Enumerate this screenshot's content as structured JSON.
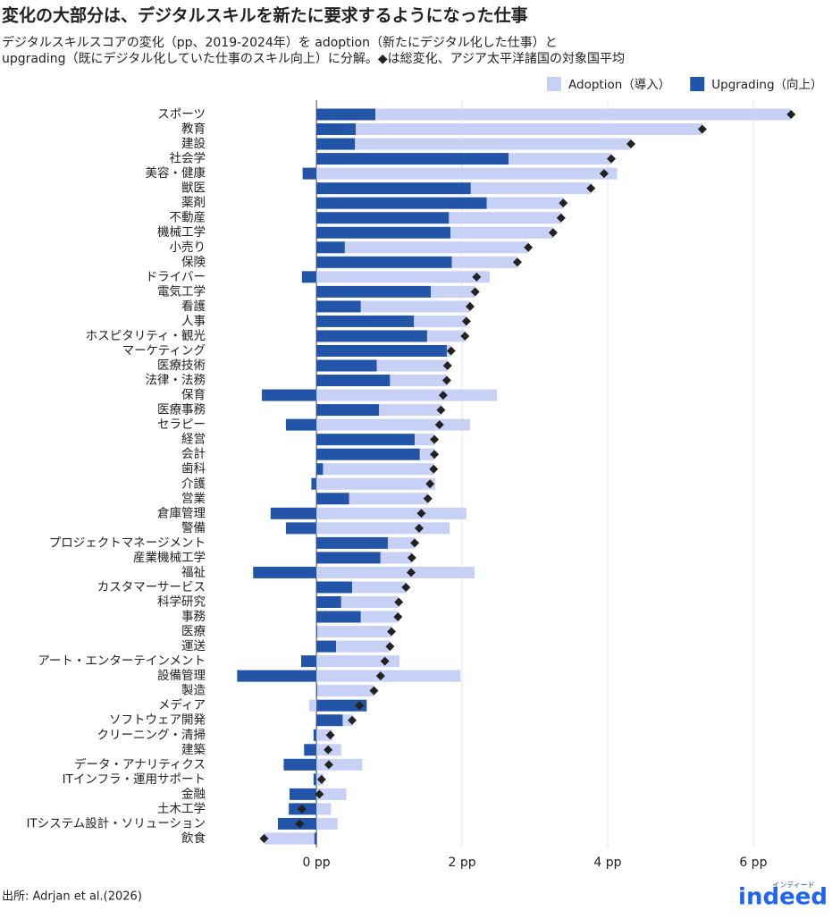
{
  "chart_data": {
    "type": "diverging_stacked_bar",
    "title": "変化の大部分は、デジタルスキルを新たに要求するようになった仕事",
    "subtitle": [
      "デジタルスキルスコアの変化（pp、2019-2024年）を adoption（新たにデジタル化した仕事）と",
      "upgrading（既にデジタル化していた仕事のスキル向上）に分解。◆は総変化、アジア太平洋諸国の対象国平均"
    ],
    "source": "出所: Adrjan et al.(2026)",
    "logo": "indeed",
    "logo_sub": "インディード",
    "categories": [
      "スポーツ",
      "教育",
      "建設",
      "社会学",
      "美容・健康",
      "獣医",
      "薬剤",
      "不動産",
      "機械工学",
      "小売り",
      "保険",
      "ドライバー",
      "電気工学",
      "看護",
      "人事",
      "ホスピタリティ・観光",
      "マーケティング",
      "医療技術",
      "法律・法務",
      "保育",
      "医療事務",
      "セラピー",
      "経営",
      "会計",
      "歯科",
      "介護",
      "営業",
      "倉庫管理",
      "警備",
      "プロジェクトマネージメント",
      "産業機械工学",
      "福祉",
      "カスタマーサービス",
      "科学研究",
      "事務",
      "医療",
      "運送",
      "アート・エンターテインメント",
      "設備管理",
      "製造",
      "メディア",
      "ソフトウェア開発",
      "クリーニング・清掃",
      "建築",
      "データ・アナリティクス",
      "ITインフラ・運用サポート",
      "金融",
      "土木工学",
      "ITシステム設計・ソリューション",
      "飲食"
    ],
    "series": [
      {
        "name": "Adoption（導入）",
        "color": "#c7d0f5",
        "values": [
          5.71,
          4.76,
          3.79,
          1.41,
          4.13,
          1.65,
          1.05,
          1.54,
          1.41,
          2.52,
          0.9,
          2.38,
          0.61,
          1.5,
          0.72,
          0.52,
          0.06,
          0.97,
          0.78,
          2.48,
          0.85,
          2.11,
          0.27,
          0.2,
          1.52,
          1.63,
          1.08,
          2.06,
          1.83,
          0.37,
          0.43,
          2.17,
          0.74,
          0.79,
          0.51,
          1.02,
          0.74,
          1.14,
          1.98,
          0.78,
          -0.1,
          0.14,
          0.22,
          0.34,
          0.63,
          0.1,
          0.41,
          0.2,
          0.29,
          -0.69
        ]
      },
      {
        "name": "Upgrading（向上）",
        "color": "#2255a8",
        "values": [
          0.81,
          0.54,
          0.53,
          2.64,
          -0.19,
          2.12,
          2.34,
          1.82,
          1.84,
          0.39,
          1.86,
          -0.2,
          1.57,
          0.61,
          1.34,
          1.52,
          1.79,
          0.83,
          1.01,
          -0.75,
          0.86,
          -0.42,
          1.35,
          1.42,
          0.09,
          -0.07,
          0.45,
          -0.63,
          -0.42,
          0.98,
          0.88,
          -0.87,
          0.49,
          0.34,
          0.61,
          0.01,
          0.27,
          -0.21,
          -1.09,
          0.01,
          0.69,
          0.36,
          -0.04,
          -0.17,
          -0.45,
          -0.04,
          -0.37,
          -0.38,
          -0.53,
          -0.03
        ]
      }
    ],
    "totals": [
      6.52,
      5.3,
      4.32,
      4.05,
      3.95,
      3.77,
      3.39,
      3.36,
      3.25,
      2.91,
      2.76,
      2.2,
      2.18,
      2.11,
      2.06,
      2.04,
      1.85,
      1.8,
      1.79,
      1.74,
      1.71,
      1.69,
      1.62,
      1.62,
      1.61,
      1.56,
      1.53,
      1.44,
      1.41,
      1.35,
      1.31,
      1.3,
      1.23,
      1.13,
      1.12,
      1.03,
      1.01,
      0.94,
      0.88,
      0.79,
      0.59,
      0.49,
      0.19,
      0.16,
      0.17,
      0.07,
      0.04,
      -0.2,
      -0.23,
      -0.72
    ],
    "total_color": "#222222",
    "xlim": [
      -1.45,
      6.75
    ],
    "xticks": [
      {
        "value": 0,
        "label": "0 pp"
      },
      {
        "value": 2,
        "label": "2 pp"
      },
      {
        "value": 4,
        "label": "4 pp"
      },
      {
        "value": 6,
        "label": "6 pp"
      }
    ],
    "grid": true,
    "legend": "top-right"
  }
}
